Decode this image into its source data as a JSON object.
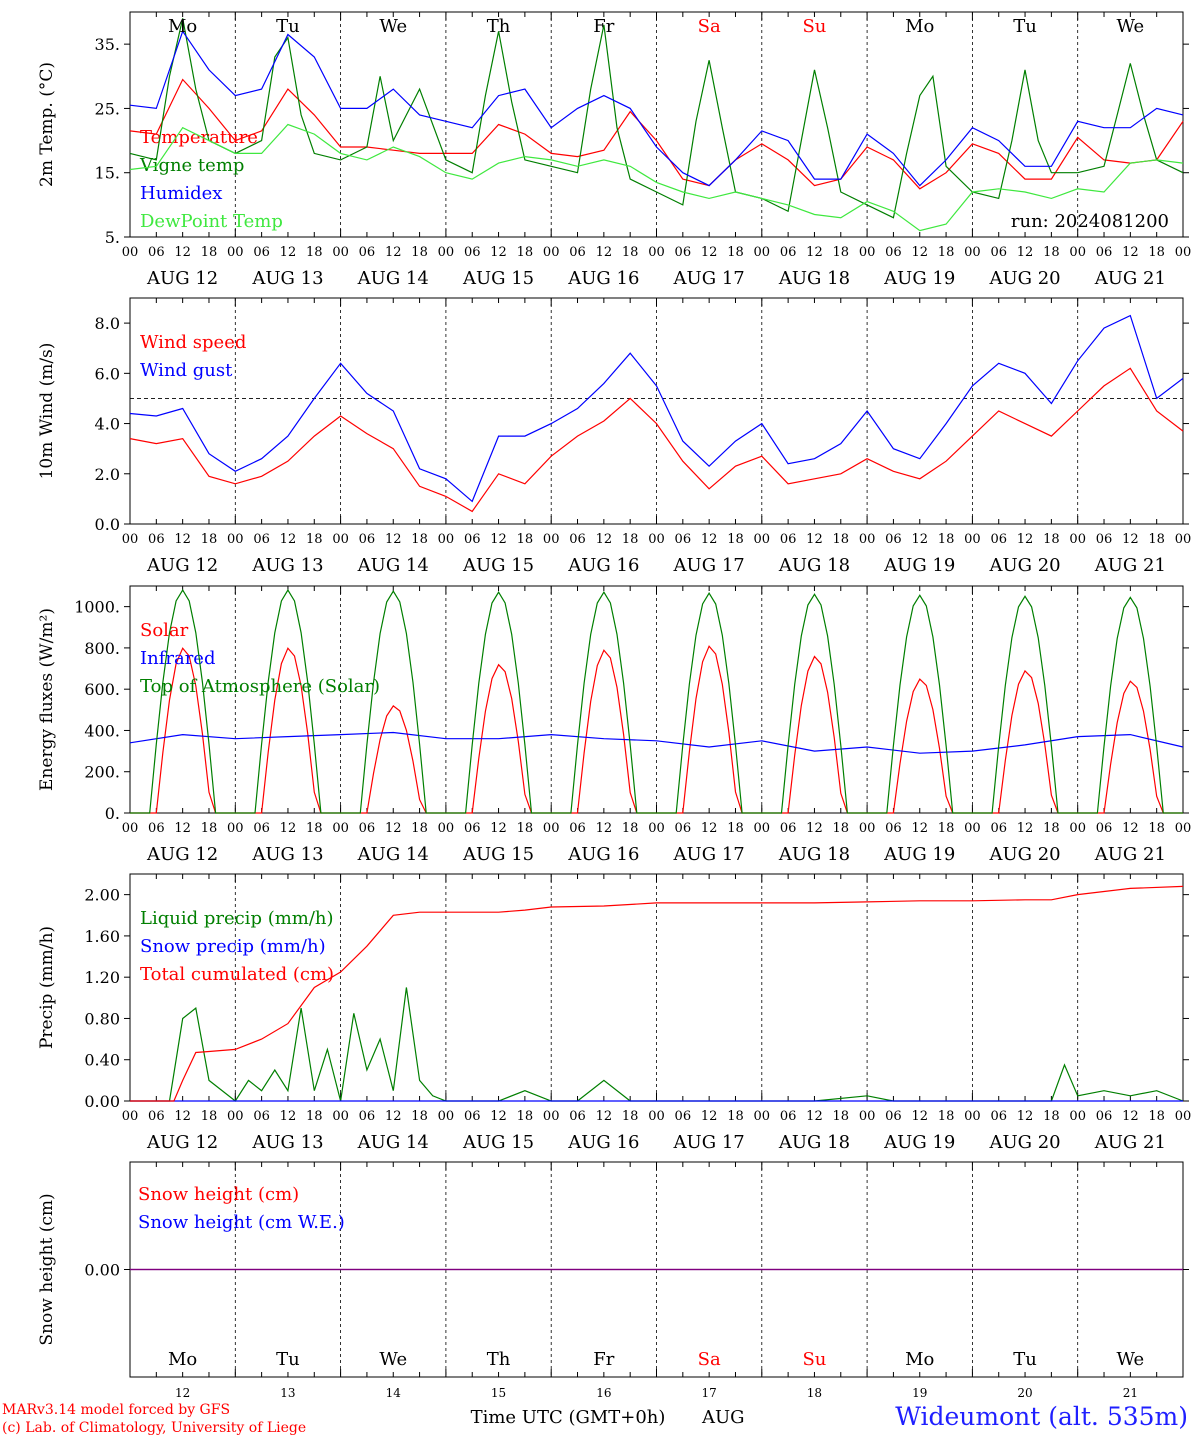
{
  "run_label": "run: 2024081200",
  "footer": {
    "model": "MARv3.14 model forced by GFS",
    "copyright": "(c) Lab. of Climatology, University of Liege",
    "xaxis_title": "Time UTC (GMT+0h)",
    "month": "AUG",
    "station": "Wideumont (alt. 535m)"
  },
  "days": [
    {
      "weekday": "Mo",
      "date": "AUG 12",
      "daynum": "12",
      "weekend": false
    },
    {
      "weekday": "Tu",
      "date": "AUG 13",
      "daynum": "13",
      "weekend": false
    },
    {
      "weekday": "We",
      "date": "AUG 14",
      "daynum": "14",
      "weekend": false
    },
    {
      "weekday": "Th",
      "date": "AUG 15",
      "daynum": "15",
      "weekend": false
    },
    {
      "weekday": "Fr",
      "date": "AUG 16",
      "daynum": "16",
      "weekend": false
    },
    {
      "weekday": "Sa",
      "date": "AUG 17",
      "daynum": "17",
      "weekend": true
    },
    {
      "weekday": "Su",
      "date": "AUG 18",
      "daynum": "18",
      "weekend": true
    },
    {
      "weekday": "Mo",
      "date": "AUG 19",
      "daynum": "19",
      "weekend": false
    },
    {
      "weekday": "Tu",
      "date": "AUG 20",
      "daynum": "20",
      "weekend": false
    },
    {
      "weekday": "We",
      "date": "AUG 21",
      "daynum": "21",
      "weekend": false
    }
  ],
  "hour_labels": [
    "00",
    "06",
    "12",
    "18"
  ],
  "colors": {
    "red": "#ff0000",
    "darkgreen": "#007f00",
    "blue": "#0000ff",
    "lightgreen": "#3fe83f",
    "purple": "#7f007f",
    "grid": "#000000"
  },
  "chart_data": [
    {
      "type": "line",
      "ylabel": "2m Temp. (°C)",
      "ylim": [
        5,
        40
      ],
      "yticks": [
        5,
        15,
        25,
        35
      ],
      "ytick_labels": [
        "5.",
        "15.",
        "25.",
        "35."
      ],
      "x_unit": "hours since AUG 12 00 UTC",
      "series": [
        {
          "name": "Temperature",
          "color": "#ff0000",
          "x": [
            0,
            6,
            12,
            18,
            24,
            30,
            36,
            42,
            48,
            54,
            60,
            66,
            72,
            78,
            84,
            90,
            96,
            102,
            108,
            114,
            120,
            126,
            132,
            138,
            144,
            150,
            156,
            162,
            168,
            174,
            180,
            186,
            192,
            198,
            204,
            210,
            216,
            222,
            228,
            234,
            240
          ],
          "y": [
            21.5,
            21,
            29.5,
            25,
            20,
            21.5,
            28,
            24,
            19,
            19,
            18.5,
            18,
            18,
            18,
            22.5,
            21,
            18,
            17.5,
            18.5,
            24.5,
            20,
            14,
            13,
            17,
            19.5,
            17,
            13,
            14,
            19,
            17,
            12.5,
            15,
            19.5,
            18,
            14,
            14,
            20.5,
            17,
            16.5,
            17,
            23
          ]
        },
        {
          "name": "Vigne temp",
          "color": "#007f00",
          "x": [
            0,
            6,
            9,
            12,
            15,
            18,
            24,
            30,
            33,
            36,
            39,
            42,
            48,
            54,
            57,
            60,
            63,
            66,
            72,
            78,
            81,
            84,
            87,
            90,
            96,
            102,
            105,
            108,
            111,
            114,
            120,
            126,
            129,
            132,
            135,
            138,
            144,
            150,
            153,
            156,
            159,
            162,
            168,
            174,
            177,
            180,
            183,
            186,
            192,
            198,
            201,
            204,
            207,
            210,
            216,
            222,
            225,
            228,
            231,
            234,
            240
          ],
          "y": [
            18,
            17,
            30,
            39,
            28,
            20,
            18,
            20,
            33,
            36,
            24,
            18,
            17,
            19,
            30,
            20,
            24,
            28,
            17,
            15,
            27,
            37,
            26,
            17,
            16,
            15,
            28,
            38,
            22,
            14,
            12,
            10,
            23,
            32.5,
            22,
            12,
            11,
            9,
            20,
            31,
            22,
            12,
            10,
            8,
            18,
            27,
            30,
            16,
            12,
            11,
            20,
            31,
            20,
            15,
            15,
            16,
            24,
            32,
            24,
            17,
            15
          ]
        },
        {
          "name": "Humidex",
          "color": "#0000ff",
          "x": [
            0,
            6,
            12,
            18,
            24,
            30,
            36,
            42,
            48,
            54,
            60,
            66,
            72,
            78,
            84,
            90,
            96,
            102,
            108,
            114,
            120,
            126,
            132,
            138,
            144,
            150,
            156,
            162,
            168,
            174,
            180,
            186,
            192,
            198,
            204,
            210,
            216,
            222,
            228,
            234,
            240
          ],
          "y": [
            25.5,
            25,
            37,
            31,
            27,
            28,
            36.5,
            33,
            25,
            25,
            28,
            24,
            23,
            22,
            27,
            28,
            22,
            25,
            27,
            25,
            19,
            15,
            13,
            17,
            21.5,
            20,
            14,
            14,
            21,
            18,
            13,
            17,
            22,
            20,
            16,
            16,
            23,
            22,
            22,
            25,
            24
          ]
        },
        {
          "name": "DewPoint Temp",
          "color": "#3fe83f",
          "x": [
            0,
            6,
            12,
            18,
            24,
            30,
            36,
            42,
            48,
            54,
            60,
            66,
            72,
            78,
            84,
            90,
            96,
            102,
            108,
            114,
            120,
            126,
            132,
            138,
            144,
            150,
            156,
            162,
            168,
            174,
            180,
            186,
            192,
            198,
            204,
            210,
            216,
            222,
            228,
            234,
            240
          ],
          "y": [
            15.5,
            16,
            22,
            20,
            18,
            18,
            22.5,
            21,
            18,
            17,
            19,
            17.5,
            15,
            14,
            16.5,
            17.5,
            17,
            16,
            17,
            16,
            13.5,
            12,
            11,
            12,
            11,
            10,
            8.5,
            8,
            10.5,
            9,
            6,
            7,
            12,
            12.5,
            12,
            11,
            12.5,
            12,
            16.5,
            17,
            16.5
          ]
        }
      ]
    },
    {
      "type": "line",
      "ylabel": "10m Wind (m/s)",
      "ylim": [
        0,
        9
      ],
      "yticks": [
        0,
        2,
        4,
        6,
        8
      ],
      "ytick_labels": [
        "0.0",
        "2.0",
        "4.0",
        "6.0",
        "8.0"
      ],
      "reference_line": 5.0,
      "series": [
        {
          "name": "Wind speed",
          "color": "#ff0000",
          "x": [
            0,
            6,
            12,
            18,
            24,
            30,
            36,
            42,
            48,
            54,
            60,
            66,
            72,
            78,
            84,
            90,
            96,
            102,
            108,
            114,
            120,
            126,
            132,
            138,
            144,
            150,
            156,
            162,
            168,
            174,
            180,
            186,
            192,
            198,
            204,
            210,
            216,
            222,
            228,
            234,
            240
          ],
          "y": [
            3.4,
            3.2,
            3.4,
            1.9,
            1.6,
            1.9,
            2.5,
            3.5,
            4.3,
            3.6,
            3.0,
            1.5,
            1.1,
            0.5,
            2.0,
            1.6,
            2.7,
            3.5,
            4.1,
            5.0,
            4.0,
            2.5,
            1.4,
            2.3,
            2.7,
            1.6,
            1.8,
            2.0,
            2.6,
            2.1,
            1.8,
            2.5,
            3.5,
            4.5,
            4.0,
            3.5,
            4.5,
            5.5,
            6.2,
            4.5,
            3.7
          ]
        },
        {
          "name": "Wind gust",
          "color": "#0000ff",
          "x": [
            0,
            6,
            12,
            18,
            24,
            30,
            36,
            42,
            48,
            54,
            60,
            66,
            72,
            78,
            84,
            90,
            96,
            102,
            108,
            114,
            120,
            126,
            132,
            138,
            144,
            150,
            156,
            162,
            168,
            174,
            180,
            186,
            192,
            198,
            204,
            210,
            216,
            222,
            228,
            234,
            240
          ],
          "y": [
            4.4,
            4.3,
            4.6,
            2.8,
            2.1,
            2.6,
            3.5,
            5.0,
            6.4,
            5.2,
            4.5,
            2.2,
            1.8,
            0.9,
            3.5,
            3.5,
            4.0,
            4.6,
            5.6,
            6.8,
            5.5,
            3.3,
            2.3,
            3.3,
            4.0,
            2.4,
            2.6,
            3.2,
            4.5,
            3.0,
            2.6,
            4.0,
            5.5,
            6.4,
            6.0,
            4.8,
            6.5,
            7.8,
            8.3,
            5.0,
            5.8
          ]
        }
      ]
    },
    {
      "type": "line",
      "ylabel": "Energy fluxes (W/m²)",
      "ylim": [
        0,
        1100
      ],
      "yticks": [
        0,
        200,
        400,
        600,
        800,
        1000
      ],
      "ytick_labels": [
        "0.",
        "200.",
        "400.",
        "600.",
        "800.",
        "1000."
      ],
      "series": [
        {
          "name": "Solar",
          "color": "#ff0000",
          "peaks": [
            800,
            800,
            520,
            720,
            790,
            810,
            760,
            650,
            690,
            640
          ]
        },
        {
          "name": "Infrared",
          "color": "#0000ff",
          "x": [
            0,
            12,
            24,
            36,
            48,
            60,
            72,
            84,
            96,
            108,
            120,
            132,
            144,
            156,
            168,
            180,
            192,
            204,
            216,
            228,
            240
          ],
          "y": [
            340,
            380,
            360,
            370,
            380,
            390,
            360,
            360,
            380,
            360,
            350,
            320,
            350,
            300,
            320,
            290,
            300,
            330,
            370,
            380,
            320
          ]
        },
        {
          "name": "Top of Atmosphere (Solar)",
          "color": "#007f00",
          "peaks": [
            1080,
            1080,
            1075,
            1070,
            1070,
            1065,
            1060,
            1055,
            1050,
            1045
          ]
        }
      ]
    },
    {
      "type": "line",
      "ylabel": "Precip (mm/h)",
      "ylim": [
        0,
        2.2
      ],
      "yticks": [
        0,
        0.4,
        0.8,
        1.2,
        1.6,
        2.0
      ],
      "ytick_labels": [
        "0.00",
        "0.40",
        "0.80",
        "1.20",
        "1.60",
        "2.00"
      ],
      "series": [
        {
          "name": "Liquid precip (mm/h)",
          "color": "#007f00",
          "x": [
            0,
            9,
            12,
            15,
            18,
            24,
            27,
            30,
            33,
            36,
            39,
            42,
            45,
            48,
            51,
            54,
            57,
            60,
            63,
            66,
            69,
            72,
            84,
            90,
            96,
            102,
            108,
            114,
            120,
            126,
            132,
            144,
            156,
            168,
            174,
            180,
            192,
            204,
            210,
            213,
            216,
            222,
            228,
            234,
            240
          ],
          "y": [
            0,
            0,
            0.8,
            0.9,
            0.2,
            0,
            0.2,
            0.1,
            0.3,
            0.1,
            0.9,
            0.1,
            0.5,
            0,
            0.85,
            0.3,
            0.6,
            0.1,
            1.1,
            0.2,
            0.05,
            0,
            0,
            0.1,
            0,
            0,
            0.2,
            0,
            0,
            0,
            0,
            0,
            0,
            0.05,
            0,
            0,
            0,
            0,
            0,
            0.35,
            0.05,
            0.1,
            0.05,
            0.1,
            0
          ]
        },
        {
          "name": "Snow precip (mm/h)",
          "color": "#0000ff",
          "x": [
            0,
            240
          ],
          "y": [
            0,
            0
          ]
        },
        {
          "name": "Total cumulated (cm)",
          "color": "#ff0000",
          "x": [
            0,
            10,
            12,
            15,
            18,
            24,
            30,
            36,
            42,
            48,
            54,
            60,
            66,
            72,
            84,
            90,
            96,
            108,
            120,
            132,
            144,
            156,
            168,
            180,
            192,
            204,
            210,
            216,
            222,
            228,
            240
          ],
          "y": [
            0,
            0,
            0.2,
            0.47,
            0.48,
            0.5,
            0.6,
            0.75,
            1.1,
            1.25,
            1.5,
            1.8,
            1.83,
            1.83,
            1.83,
            1.85,
            1.88,
            1.89,
            1.92,
            1.92,
            1.92,
            1.92,
            1.93,
            1.94,
            1.94,
            1.95,
            1.95,
            2.0,
            2.03,
            2.06,
            2.08
          ]
        }
      ]
    },
    {
      "type": "line",
      "ylabel": "Snow height (cm)",
      "yticks": [
        0
      ],
      "ytick_labels": [
        "0.00"
      ],
      "series": [
        {
          "name": "Snow height (cm)",
          "color": "#ff0000",
          "x": [
            0,
            240
          ],
          "y": [
            0,
            0
          ]
        },
        {
          "name": "Snow height (cm W.E.)",
          "color": "#0000ff",
          "x": [
            0,
            240
          ],
          "y": [
            0,
            0
          ]
        }
      ]
    }
  ]
}
